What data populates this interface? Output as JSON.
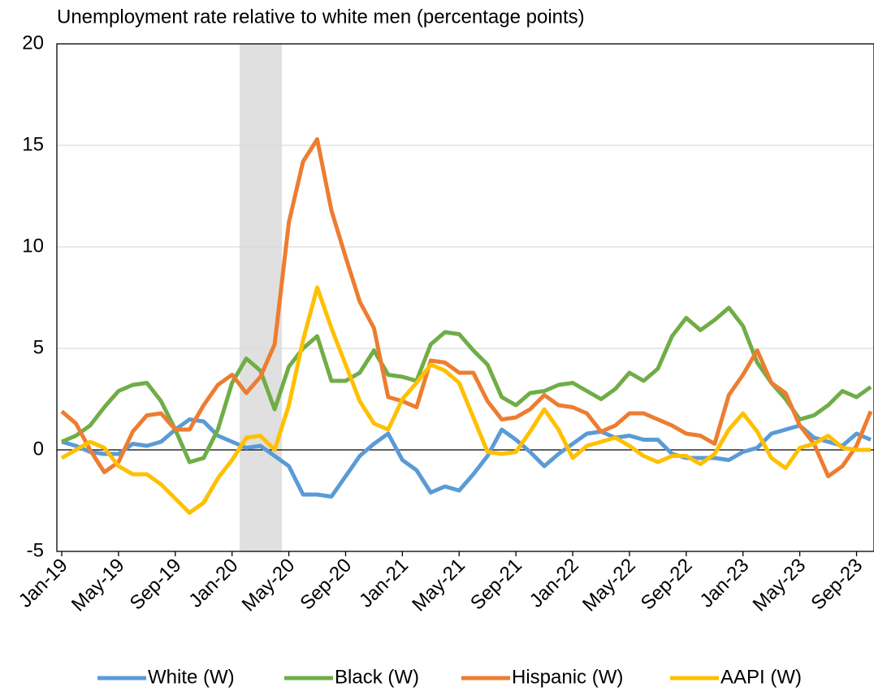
{
  "chart_data": {
    "type": "line",
    "title": "Unemployment rate relative to white men (percentage points)",
    "categories": [
      "Jan-19",
      null,
      null,
      null,
      "May-19",
      null,
      null,
      null,
      "Sep-19",
      null,
      null,
      null,
      "Jan-20",
      null,
      null,
      null,
      "May-20",
      null,
      null,
      null,
      "Sep-20",
      null,
      null,
      null,
      "Jan-21",
      null,
      null,
      null,
      "May-21",
      null,
      null,
      null,
      "Sep-21",
      null,
      null,
      null,
      "Jan-22",
      null,
      null,
      null,
      "May-22",
      null,
      null,
      null,
      "Sep-22",
      null,
      null,
      null,
      "Jan-23",
      null,
      null,
      null,
      "May-23",
      null,
      null,
      null,
      "Sep-23",
      null
    ],
    "series": [
      {
        "name": "White (W)",
        "color": "#5b9bd5",
        "values": [
          0.4,
          0.2,
          -0.1,
          -0.2,
          -0.2,
          0.3,
          0.2,
          0.4,
          1.0,
          1.5,
          1.4,
          0.7,
          0.4,
          0.1,
          0.2,
          -0.3,
          -0.8,
          -2.2,
          -2.2,
          -2.3,
          -1.3,
          -0.3,
          0.3,
          0.8,
          -0.5,
          -1.0,
          -2.1,
          -1.8,
          -2.0,
          -1.2,
          -0.3,
          1.0,
          0.5,
          -0.1,
          -0.8,
          -0.2,
          0.3,
          0.8,
          0.9,
          0.6,
          0.7,
          0.5,
          0.5,
          -0.2,
          -0.4,
          -0.4,
          -0.4,
          -0.5,
          -0.1,
          0.1,
          0.8,
          1.0,
          1.2,
          0.6,
          0.4,
          0.2,
          0.8,
          0.5
        ]
      },
      {
        "name": "Black (W)",
        "color": "#70ad47",
        "values": [
          0.4,
          0.7,
          1.2,
          2.1,
          2.9,
          3.2,
          3.3,
          2.4,
          1.0,
          -0.6,
          -0.4,
          1.0,
          3.3,
          4.5,
          3.9,
          2.0,
          4.1,
          5.0,
          5.6,
          3.4,
          3.4,
          3.8,
          4.9,
          3.7,
          3.6,
          3.4,
          5.2,
          5.8,
          5.7,
          4.9,
          4.2,
          2.6,
          2.2,
          2.8,
          2.9,
          3.2,
          3.3,
          2.9,
          2.5,
          3.0,
          3.8,
          3.4,
          4.0,
          5.6,
          6.5,
          5.9,
          6.4,
          7.0,
          6.1,
          4.3,
          3.3,
          2.5,
          1.5,
          1.7,
          2.2,
          2.9,
          2.6,
          3.1
        ]
      },
      {
        "name": "Hispanic (W)",
        "color": "#ed7d31",
        "values": [
          1.9,
          1.3,
          0,
          -1.1,
          -0.6,
          0.9,
          1.7,
          1.8,
          1.0,
          1.0,
          2.2,
          3.2,
          3.7,
          2.8,
          3.6,
          5.2,
          11.2,
          14.2,
          15.3,
          11.8,
          9.5,
          7.3,
          6.0,
          2.6,
          2.4,
          2.1,
          4.4,
          4.3,
          3.8,
          3.8,
          2.4,
          1.5,
          1.6,
          2.0,
          2.7,
          2.2,
          2.1,
          1.8,
          0.9,
          1.2,
          1.8,
          1.8,
          1.5,
          1.2,
          0.8,
          0.7,
          0.3,
          2.7,
          3.7,
          4.9,
          3.3,
          2.8,
          1.2,
          0.3,
          -1.3,
          -0.8,
          0.2,
          1.9
        ]
      },
      {
        "name": "AAPI (W)",
        "color": "#ffc000",
        "values": [
          -0.4,
          0,
          0.4,
          0.1,
          -0.8,
          -1.2,
          -1.2,
          -1.7,
          -2.4,
          -3.1,
          -2.6,
          -1.4,
          -0.5,
          0.6,
          0.7,
          0,
          2.2,
          5.4,
          8.0,
          6.0,
          4.2,
          2.4,
          1.3,
          1.0,
          2.5,
          3.3,
          4.2,
          3.9,
          3.3,
          1.6,
          -0.1,
          -0.2,
          -0.1,
          0.9,
          2.0,
          1.0,
          -0.4,
          0.2,
          0.4,
          0.6,
          0.2,
          -0.3,
          -0.6,
          -0.3,
          -0.3,
          -0.7,
          -0.2,
          1.0,
          1.8,
          0.9,
          -0.4,
          -0.9,
          0.1,
          0.3,
          0.7,
          0.1,
          0.0,
          0.0
        ]
      }
    ],
    "ylim": [
      -5,
      20
    ],
    "yticks": [
      -5,
      0,
      5,
      10,
      15,
      20
    ],
    "grid": true,
    "legend": "bottom"
  }
}
